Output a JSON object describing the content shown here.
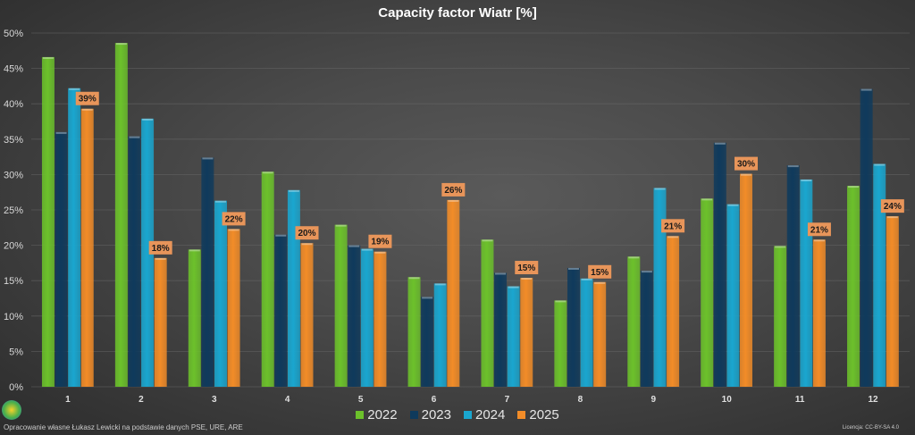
{
  "chart_data": {
    "type": "bar",
    "title": "Capacity factor Wiatr [%]",
    "categories": [
      "1",
      "2",
      "3",
      "4",
      "5",
      "6",
      "7",
      "8",
      "9",
      "10",
      "11",
      "12"
    ],
    "ylim": [
      0,
      50
    ],
    "yticks": [
      "0%",
      "5%",
      "10%",
      "15%",
      "20%",
      "25%",
      "30%",
      "35%",
      "40%",
      "45%",
      "50%"
    ],
    "grid": true,
    "legend_placement": "bottom",
    "series": [
      {
        "name": "2022",
        "color": "#6cc12b",
        "values": [
          46.6,
          48.6,
          19.4,
          30.4,
          22.9,
          15.5,
          20.8,
          12.2,
          18.4,
          26.6,
          19.9,
          28.4
        ]
      },
      {
        "name": "2023",
        "color": "#0f3a5c",
        "values": [
          36.0,
          35.4,
          32.4,
          21.5,
          20.0,
          12.7,
          16.1,
          16.8,
          16.4,
          34.5,
          31.3,
          42.1
        ]
      },
      {
        "name": "2024",
        "color": "#1aa6cf",
        "values": [
          42.2,
          37.9,
          26.3,
          27.8,
          19.5,
          14.6,
          14.2,
          15.3,
          28.1,
          25.8,
          29.3,
          31.5
        ]
      },
      {
        "name": "2025",
        "color": "#f28c28",
        "values": [
          39.3,
          18.2,
          22.3,
          20.3,
          19.1,
          26.4,
          15.4,
          14.8,
          21.3,
          30.1,
          20.8,
          24.1
        ],
        "data_labels": [
          "39%",
          "18%",
          "22%",
          "20%",
          "19%",
          "26%",
          "15%",
          "15%",
          "21%",
          "30%",
          "21%",
          "24%"
        ]
      }
    ]
  },
  "footer": {
    "credit": "Opracowanie własne Łukasz Lewicki na podstawie danych PSE, URE, ARE",
    "license": "Licencja: CC-BY-SA 4.0"
  }
}
